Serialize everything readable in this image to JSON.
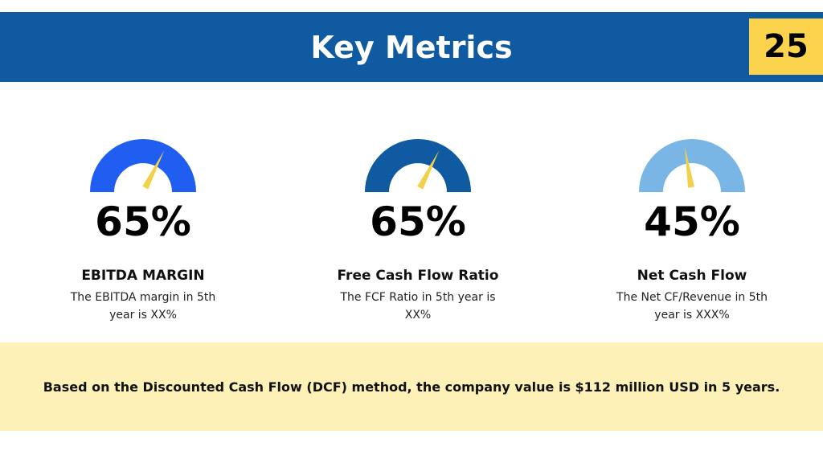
{
  "header": {
    "title": "Key Metrics",
    "page_number": "25"
  },
  "metrics": [
    {
      "value": "65%",
      "fraction": 0.65,
      "label": "EBITDA MARGIN",
      "description": "The EBITDA margin in 5th  year is XX%",
      "color": "#1f5ef0"
    },
    {
      "value": "65%",
      "fraction": 0.65,
      "label": "Free Cash Flow Ratio",
      "description": "The FCF Ratio in 5th year is XX%",
      "color": "#0f5aa0"
    },
    {
      "value": "45%",
      "fraction": 0.45,
      "label": "Net Cash Flow",
      "description": "The Net CF/Revenue in 5th year is XXX%",
      "color": "#79b6e6"
    }
  ],
  "needle_color": "#f2d04a",
  "banner": {
    "text": "Based on the Discounted Cash Flow (DCF) method, the company value is $112 million USD in 5 years."
  }
}
